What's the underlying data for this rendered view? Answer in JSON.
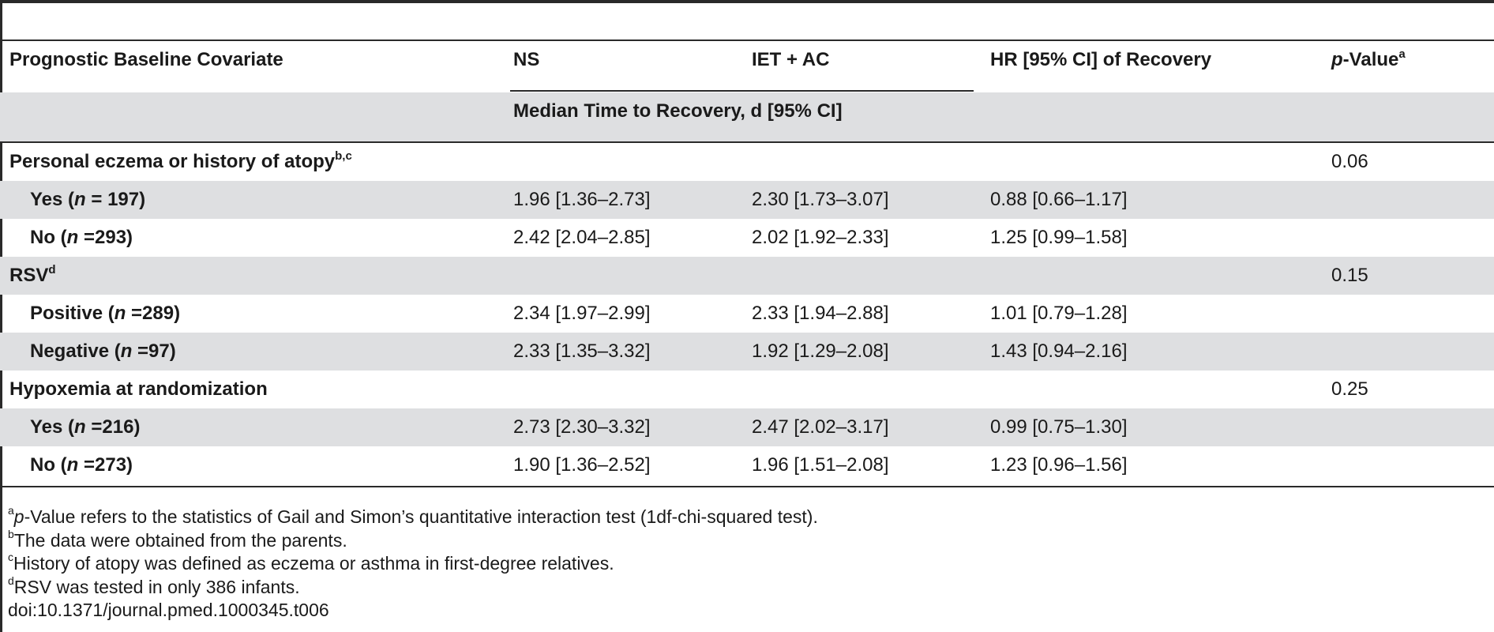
{
  "table": {
    "header": {
      "covariate": "Prognostic Baseline Covariate",
      "ns": "NS",
      "iet_ac": "IET + AC",
      "hr": "HR [95% CI] of Recovery",
      "pvalue_p": "p",
      "pvalue_rest": "-Value",
      "pvalue_sup": "a",
      "subheader": "Median Time to Recovery, d [95% CI]"
    },
    "groups": [
      {
        "label": "Personal eczema or history of atopy",
        "sup": "b,c",
        "pvalue": "0.06",
        "rows": [
          {
            "label": "Yes (",
            "n": "n",
            "count": " = 197)",
            "ns": "1.96 [1.36–2.73]",
            "iet": "2.30 [1.73–3.07]",
            "hr": "0.88 [0.66–1.17]"
          },
          {
            "label": "No (",
            "n": "n",
            "count": " =293)",
            "ns": "2.42 [2.04–2.85]",
            "iet": "2.02 [1.92–2.33]",
            "hr": "1.25 [0.99–1.58]"
          }
        ]
      },
      {
        "label": "RSV",
        "sup": "d",
        "pvalue": "0.15",
        "rows": [
          {
            "label": "Positive (",
            "n": "n",
            "count": " =289)",
            "ns": "2.34 [1.97–2.99]",
            "iet": "2.33 [1.94–2.88]",
            "hr": "1.01 [0.79–1.28]"
          },
          {
            "label": "Negative (",
            "n": "n",
            "count": " =97)",
            "ns": "2.33 [1.35–3.32]",
            "iet": "1.92 [1.29–2.08]",
            "hr": "1.43 [0.94–2.16]"
          }
        ]
      },
      {
        "label": "Hypoxemia at randomization",
        "sup": "",
        "pvalue": "0.25",
        "rows": [
          {
            "label": "Yes (",
            "n": "n",
            "count": " =216)",
            "ns": "2.73 [2.30–3.32]",
            "iet": "2.47 [2.02–3.17]",
            "hr": "0.99 [0.75–1.30]"
          },
          {
            "label": "No (",
            "n": "n",
            "count": " =273)",
            "ns": "1.90 [1.36–2.52]",
            "iet": "1.96 [1.51–2.08]",
            "hr": "1.23 [0.96–1.56]"
          }
        ]
      }
    ]
  },
  "footnotes": {
    "a": {
      "sup": "a",
      "italic": "p",
      "text": "-Value refers to the statistics of Gail and Simon’s quantitative interaction test (1df-chi-squared test)."
    },
    "b": {
      "sup": "b",
      "text": "The data were obtained from the parents."
    },
    "c": {
      "sup": "c",
      "text": "History of atopy was defined as eczema or asthma in first-degree relatives."
    },
    "d": {
      "sup": "d",
      "text": "RSV was tested in only 386 infants."
    },
    "doi": "doi:10.1371/journal.pmed.1000345.t006"
  }
}
